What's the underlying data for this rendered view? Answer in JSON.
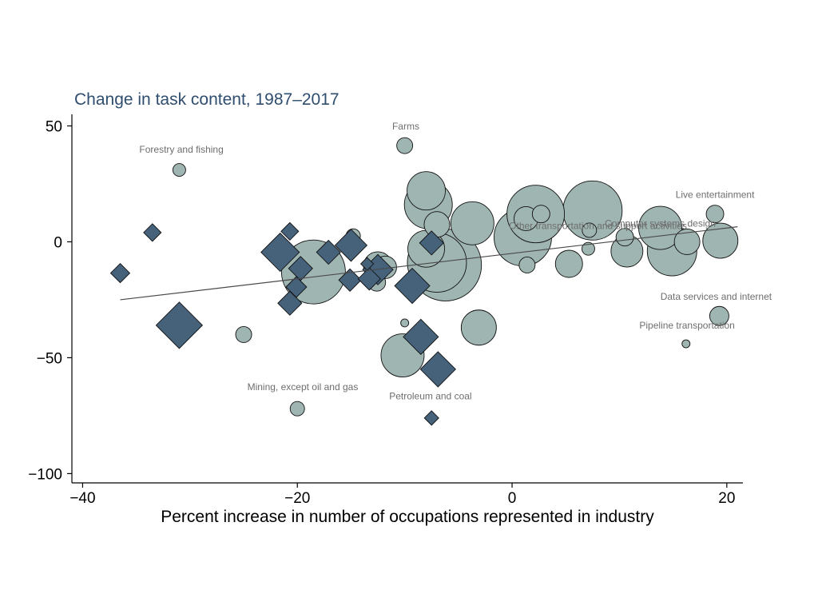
{
  "chart_data": {
    "type": "scatter",
    "title": "Change in task content, 1987–2017",
    "xlabel": "Percent increase in number of occupations represented in industry",
    "ylabel": "",
    "xlim": [
      -41,
      21.5
    ],
    "ylim": [
      -104,
      55
    ],
    "xticks": [
      {
        "v": -40,
        "label": "−40"
      },
      {
        "v": -20,
        "label": "−20"
      },
      {
        "v": 0,
        "label": "0"
      },
      {
        "v": 20,
        "label": "20"
      }
    ],
    "yticks": [
      {
        "v": 50,
        "label": "50"
      },
      {
        "v": 0,
        "label": "0"
      },
      {
        "v": -50,
        "label": "−50"
      },
      {
        "v": -100,
        "label": "−100"
      }
    ],
    "grid": false,
    "legend": "none",
    "colors": {
      "circle_fill": "#9fb5b1",
      "diamond_fill": "#46617a",
      "title": "#2f4e6f",
      "fit_line": "#4a4a4a",
      "annotation": "#6e6e6e"
    },
    "fit_line": {
      "x": [
        -36.5,
        21
      ],
      "y": [
        -25,
        6.5
      ]
    },
    "series": [
      {
        "marker": "circle",
        "points": [
          {
            "x": -31,
            "y": 31,
            "s": 8
          },
          {
            "x": -10,
            "y": 41.5,
            "s": 10
          },
          {
            "x": -25,
            "y": -40,
            "s": 10
          },
          {
            "x": -20,
            "y": -72,
            "s": 9
          },
          {
            "x": -18.5,
            "y": -13,
            "s": 40
          },
          {
            "x": -14.8,
            "y": 2.5,
            "s": 9
          },
          {
            "x": -12.5,
            "y": -10.5,
            "s": 18
          },
          {
            "x": -11.8,
            "y": -11,
            "s": 14
          },
          {
            "x": -12.6,
            "y": -17.5,
            "s": 11
          },
          {
            "x": -7.8,
            "y": 16,
            "s": 30
          },
          {
            "x": -8,
            "y": 22,
            "s": 24
          },
          {
            "x": -7,
            "y": 7.5,
            "s": 16
          },
          {
            "x": -8,
            "y": -3,
            "s": 23
          },
          {
            "x": -7,
            "y": -9,
            "s": 37
          },
          {
            "x": -6.2,
            "y": -10,
            "s": 45
          },
          {
            "x": -10,
            "y": -35,
            "s": 5
          },
          {
            "x": -10.2,
            "y": -49,
            "s": 27
          },
          {
            "x": -3.7,
            "y": 8,
            "s": 27
          },
          {
            "x": -3.1,
            "y": -37,
            "s": 22
          },
          {
            "x": 1,
            "y": 2,
            "s": 36
          },
          {
            "x": 2.2,
            "y": 12,
            "s": 36
          },
          {
            "x": 2.7,
            "y": 12,
            "s": 11
          },
          {
            "x": 1.3,
            "y": 10,
            "s": 15
          },
          {
            "x": 1.4,
            "y": -10,
            "s": 10
          },
          {
            "x": 5.3,
            "y": -9.5,
            "s": 17
          },
          {
            "x": 7.2,
            "y": 5,
            "s": 9
          },
          {
            "x": 7.1,
            "y": -3,
            "s": 8
          },
          {
            "x": 7.5,
            "y": 13.5,
            "s": 37
          },
          {
            "x": 10.5,
            "y": 2,
            "s": 11
          },
          {
            "x": 10.7,
            "y": -4,
            "s": 20
          },
          {
            "x": 13.8,
            "y": 6,
            "s": 27
          },
          {
            "x": 14.9,
            "y": -4,
            "s": 31
          },
          {
            "x": 16.3,
            "y": 0,
            "s": 16
          },
          {
            "x": 18.9,
            "y": 12,
            "s": 11
          },
          {
            "x": 19.4,
            "y": 0.5,
            "s": 22
          },
          {
            "x": 19.3,
            "y": -32,
            "s": 12
          },
          {
            "x": 16.2,
            "y": -44,
            "s": 5
          }
        ]
      },
      {
        "marker": "diamond",
        "points": [
          {
            "x": -36.5,
            "y": -13.5,
            "s": 12
          },
          {
            "x": -33.5,
            "y": 4,
            "s": 11
          },
          {
            "x": -31,
            "y": -36,
            "s": 29
          },
          {
            "x": -20.7,
            "y": 4.5,
            "s": 11
          },
          {
            "x": -21.6,
            "y": -4.5,
            "s": 24
          },
          {
            "x": -19.7,
            "y": -11.5,
            "s": 15
          },
          {
            "x": -20.1,
            "y": -19.5,
            "s": 13
          },
          {
            "x": -20.7,
            "y": -26.5,
            "s": 15
          },
          {
            "x": -17.1,
            "y": -4.5,
            "s": 15
          },
          {
            "x": -15,
            "y": -1.5,
            "s": 20
          },
          {
            "x": -15.1,
            "y": -16.5,
            "s": 14
          },
          {
            "x": -13.3,
            "y": -16,
            "s": 14
          },
          {
            "x": -12.5,
            "y": -12,
            "s": 19
          },
          {
            "x": -13.5,
            "y": -9.5,
            "s": 8
          },
          {
            "x": -9.3,
            "y": -19,
            "s": 22
          },
          {
            "x": -7.5,
            "y": -0.5,
            "s": 15
          },
          {
            "x": -8.5,
            "y": -41,
            "s": 22
          },
          {
            "x": -6.9,
            "y": -55,
            "s": 22
          },
          {
            "x": -7.5,
            "y": -76,
            "s": 9
          }
        ]
      }
    ],
    "annotations": [
      {
        "text": "Forestry and fishing",
        "x": -30.8,
        "y": 38.5
      },
      {
        "text": "Farms",
        "x": -9.9,
        "y": 48.5
      },
      {
        "text": "Live entertainment",
        "x": 18.9,
        "y": 19
      },
      {
        "text": "Other transportation and support activities",
        "x": 8,
        "y": 5.5
      },
      {
        "text": "Computer systems design",
        "x": 13.8,
        "y": 6.5
      },
      {
        "text": "Data services and internet",
        "x": 19,
        "y": -25
      },
      {
        "text": "Pipeline transportation",
        "x": 16.3,
        "y": -37.5
      },
      {
        "text": "Mining, except oil and gas",
        "x": -19.5,
        "y": -64
      },
      {
        "text": "Petroleum and coal",
        "x": -7.6,
        "y": -68
      }
    ]
  }
}
